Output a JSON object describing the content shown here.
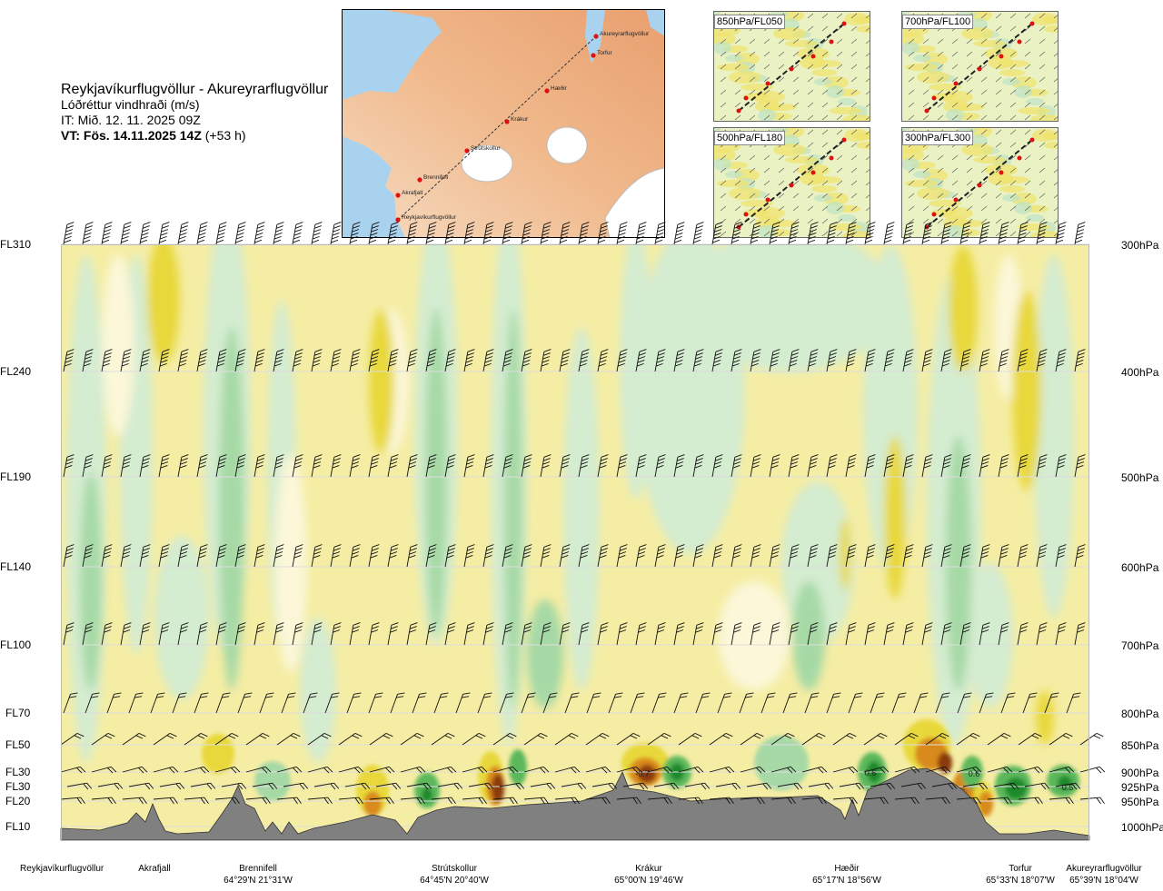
{
  "header": {
    "title": "Reykjavíkurflugvöllur - Akureyrarflugvöllur",
    "subtitle": "Lóðréttur vindhraði (m/s)",
    "issue_time": "IT: Mið. 12. 11. 2025 09Z",
    "valid_prefix": "VT: Fös. 14.11.2025 14Z",
    "valid_suffix": "(+53 h)"
  },
  "route_map": {
    "stations": [
      "Akureyrarflugvöllur",
      "Torfur",
      "Hæðir",
      "Krákur",
      "Strútskollur",
      "Brennifell",
      "Akrafjall",
      "Reykjavíkurflugvöllur"
    ]
  },
  "mini_maps": [
    {
      "label": "850hPa/FL050"
    },
    {
      "label": "700hPa/FL100"
    },
    {
      "label": "500hPa/FL180"
    },
    {
      "label": "300hPa/FL300"
    }
  ],
  "chart_data": {
    "type": "heatmap",
    "title": "Lóðréttur vindhraði (m/s)",
    "left_axis_labels": [
      "FL310",
      "FL240",
      "FL190",
      "FL140",
      "FL100",
      "FL70",
      "FL50",
      "FL30",
      "FL30",
      "FL20",
      "FL10"
    ],
    "right_axis_labels": [
      "300hPa",
      "400hPa",
      "500hPa",
      "600hPa",
      "700hPa",
      "800hPa",
      "850hPa",
      "900hPa",
      "925hPa",
      "950hPa",
      "1000hPa"
    ],
    "pressure_levels_hPa": [
      300,
      400,
      500,
      600,
      700,
      800,
      850,
      900,
      925,
      950,
      1000
    ],
    "stations": [
      {
        "name": "Reykjavíkurflugvöllur",
        "coord": ""
      },
      {
        "name": "Akrafjall",
        "coord": ""
      },
      {
        "name": "Brennifell",
        "coord": "64°29'N 21°31'W"
      },
      {
        "name": "Strútskollur",
        "coord": "64°45'N 20°40'W"
      },
      {
        "name": "Krákur",
        "coord": "65°00'N 19°46'W"
      },
      {
        "name": "Hæðir",
        "coord": "65°17'N 18°56'W"
      },
      {
        "name": "Torfur",
        "coord": "65°33'N 18°07'W"
      },
      {
        "name": "Akureyrarflugvöllur",
        "coord": "65°39'N 18°04'W"
      }
    ],
    "contour_labels": [
      "-0.7",
      "0.6",
      "0.6",
      "0.5"
    ],
    "colors": {
      "strong_up_green": "#1f8a2a",
      "up_green": "#5cb85c",
      "weak_up_green": "#a6d9a6",
      "very_weak_green": "#d4ecd0",
      "near_zero": "#fbf7d8",
      "weak_down_yellow": "#f5eda4",
      "down_yellow": "#e8d83a",
      "strong_down_orange": "#d98a1a",
      "very_strong_down_brown": "#8b3a0e",
      "terrain": "#808080"
    }
  }
}
